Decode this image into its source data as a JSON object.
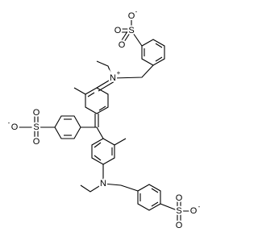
{
  "atoms": [
    {
      "symbol": "S"
    },
    {
      "symbol": "O"
    },
    {
      "symbol": "O",
      "charge": "-"
    },
    {
      "symbol": "O"
    },
    {
      "symbol": "N",
      "charge": "+"
    },
    {
      "symbol": "S"
    },
    {
      "symbol": "O",
      "charge": "-"
    },
    {
      "symbol": "O"
    },
    {
      "symbol": "O"
    },
    {
      "symbol": "N"
    },
    {
      "symbol": "S"
    },
    {
      "symbol": "O",
      "charge": "-"
    },
    {
      "symbol": "O"
    },
    {
      "symbol": "O"
    }
  ]
}
